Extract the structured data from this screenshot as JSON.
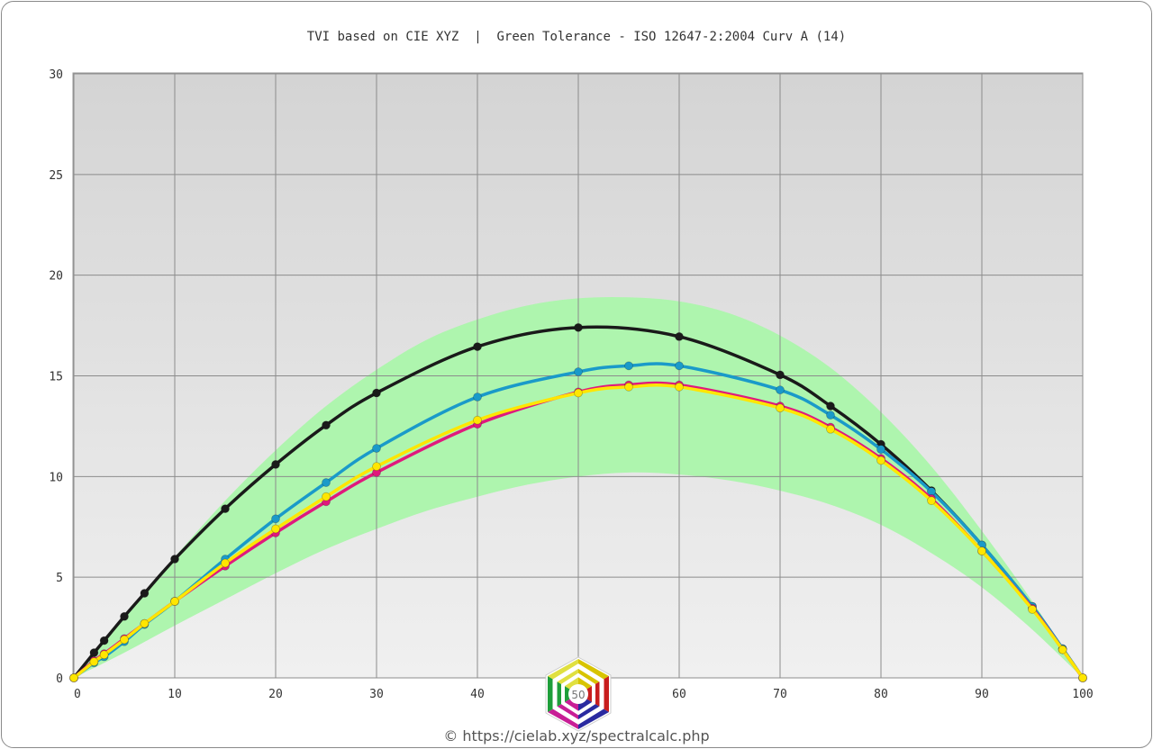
{
  "chart_data": {
    "type": "line",
    "title": "TVI based on CIE XYZ  |  Green Tolerance - ISO 12647-2:2004 Curv A (14)",
    "xlim": [
      0,
      100
    ],
    "ylim": [
      0,
      30
    ],
    "xticks": [
      0,
      10,
      20,
      30,
      40,
      50,
      60,
      70,
      80,
      90,
      100
    ],
    "xtick_labels": [
      "0",
      "10",
      "20",
      "30",
      "40",
      "",
      "60",
      "70",
      "80",
      "90",
      "100"
    ],
    "yticks": [
      0,
      5,
      10,
      15,
      20,
      25,
      30
    ],
    "grid": true,
    "tolerance_band": {
      "color": "#aef5ae",
      "x": [
        0,
        5,
        10,
        15,
        20,
        25,
        30,
        35,
        40,
        45,
        50,
        55,
        60,
        65,
        70,
        75,
        80,
        85,
        90,
        95,
        100
      ],
      "lower": [
        0,
        1.25,
        2.6,
        3.9,
        5.2,
        6.4,
        7.4,
        8.3,
        9.0,
        9.6,
        10.0,
        10.2,
        10.1,
        9.8,
        9.3,
        8.6,
        7.6,
        6.2,
        4.5,
        2.4,
        0
      ],
      "upper": [
        0,
        3.1,
        6.0,
        8.8,
        11.3,
        13.5,
        15.3,
        16.8,
        17.8,
        18.5,
        18.85,
        18.9,
        18.7,
        18.1,
        17.0,
        15.4,
        13.2,
        10.5,
        7.3,
        3.8,
        0
      ]
    },
    "series": [
      {
        "color": "#1a1a1a",
        "x": [
          0,
          2,
          3,
          5,
          7,
          10,
          15,
          20,
          25,
          30,
          40,
          50,
          60,
          70,
          75,
          80,
          85,
          90,
          95,
          98,
          100
        ],
        "y": [
          0,
          1.25,
          1.85,
          3.05,
          4.2,
          5.9,
          8.4,
          10.6,
          12.55,
          14.15,
          16.45,
          17.4,
          16.95,
          15.05,
          13.5,
          11.6,
          9.3,
          6.6,
          3.55,
          1.45,
          0
        ]
      },
      {
        "color": "#1a9ac9",
        "x": [
          0,
          2,
          3,
          5,
          7,
          10,
          15,
          20,
          25,
          30,
          40,
          50,
          55,
          60,
          70,
          75,
          80,
          85,
          90,
          95,
          98,
          100
        ],
        "y": [
          0,
          0.75,
          1.05,
          1.8,
          2.65,
          3.8,
          5.9,
          7.9,
          9.7,
          11.4,
          13.95,
          15.2,
          15.5,
          15.5,
          14.3,
          13.05,
          11.35,
          9.25,
          6.6,
          3.55,
          1.45,
          0
        ]
      },
      {
        "color": "#e0197d",
        "x": [
          0,
          2,
          3,
          5,
          7,
          10,
          15,
          20,
          25,
          30,
          40,
          50,
          55,
          60,
          70,
          75,
          80,
          85,
          90,
          95,
          98,
          100
        ],
        "y": [
          0,
          0.85,
          1.2,
          1.95,
          2.7,
          3.8,
          5.55,
          7.2,
          8.75,
          10.2,
          12.6,
          14.2,
          14.55,
          14.55,
          13.5,
          12.45,
          10.9,
          8.9,
          6.3,
          3.45,
          1.4,
          0
        ]
      },
      {
        "color": "#ffe600",
        "x": [
          0,
          2,
          3,
          5,
          7,
          10,
          15,
          20,
          25,
          30,
          40,
          50,
          55,
          60,
          70,
          75,
          80,
          85,
          90,
          95,
          98,
          100
        ],
        "y": [
          0,
          0.8,
          1.15,
          1.9,
          2.7,
          3.8,
          5.7,
          7.4,
          9.0,
          10.5,
          12.8,
          14.15,
          14.45,
          14.45,
          13.4,
          12.35,
          10.8,
          8.8,
          6.3,
          3.4,
          1.4,
          0
        ]
      }
    ]
  },
  "footer": {
    "credit": "© https://cielab.xyz/spectralcalc.php",
    "logo_text": "50"
  }
}
